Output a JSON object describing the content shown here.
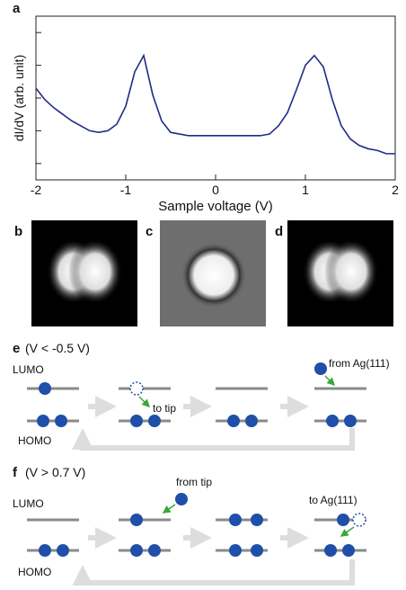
{
  "chart_data": {
    "type": "line",
    "panel_label": "a",
    "x_label": "Sample voltage (V)",
    "y_label": "dI/dV (arb. unit)",
    "x": [
      -2,
      -1.9,
      -1.8,
      -1.7,
      -1.6,
      -1.5,
      -1.4,
      -1.3,
      -1.2,
      -1.1,
      -1.0,
      -0.9,
      -0.8,
      -0.7,
      -0.6,
      -0.5,
      -0.4,
      -0.3,
      -0.2,
      -0.1,
      0,
      0.1,
      0.2,
      0.3,
      0.4,
      0.5,
      0.6,
      0.7,
      0.8,
      0.9,
      1.0,
      1.1,
      1.2,
      1.3,
      1.4,
      1.5,
      1.6,
      1.7,
      1.8,
      1.9,
      2.0
    ],
    "series": [
      {
        "color": "#1f2a8a",
        "values": [
          5.6,
          4.9,
          4.4,
          4.0,
          3.6,
          3.3,
          3.0,
          2.9,
          3.0,
          3.4,
          4.5,
          6.6,
          7.6,
          5.2,
          3.6,
          2.9,
          2.8,
          2.7,
          2.7,
          2.7,
          2.7,
          2.7,
          2.7,
          2.7,
          2.7,
          2.7,
          2.8,
          3.3,
          4.1,
          5.5,
          7.0,
          7.6,
          6.9,
          4.9,
          3.3,
          2.5,
          2.1,
          1.9,
          1.8,
          1.6,
          1.6
        ]
      }
    ],
    "xlim": [
      -2,
      2
    ],
    "xticks": [
      -2,
      -1,
      0,
      1,
      2
    ],
    "ylim": [
      0,
      10
    ],
    "yticks": [
      1,
      3,
      5,
      7,
      9
    ]
  },
  "images": {
    "labels": [
      "b",
      "c",
      "d"
    ]
  },
  "diagrams": [
    {
      "label": "e",
      "condition": "(V < -0.5 V)",
      "lumo": "LUMO",
      "homo": "HOMO",
      "notes": [
        "to tip",
        "from Ag(111)"
      ]
    },
    {
      "label": "f",
      "condition": "(V > 0.7 V)",
      "lumo": "LUMO",
      "homo": "HOMO",
      "notes": [
        "from tip",
        "to Ag(111)"
      ]
    }
  ]
}
